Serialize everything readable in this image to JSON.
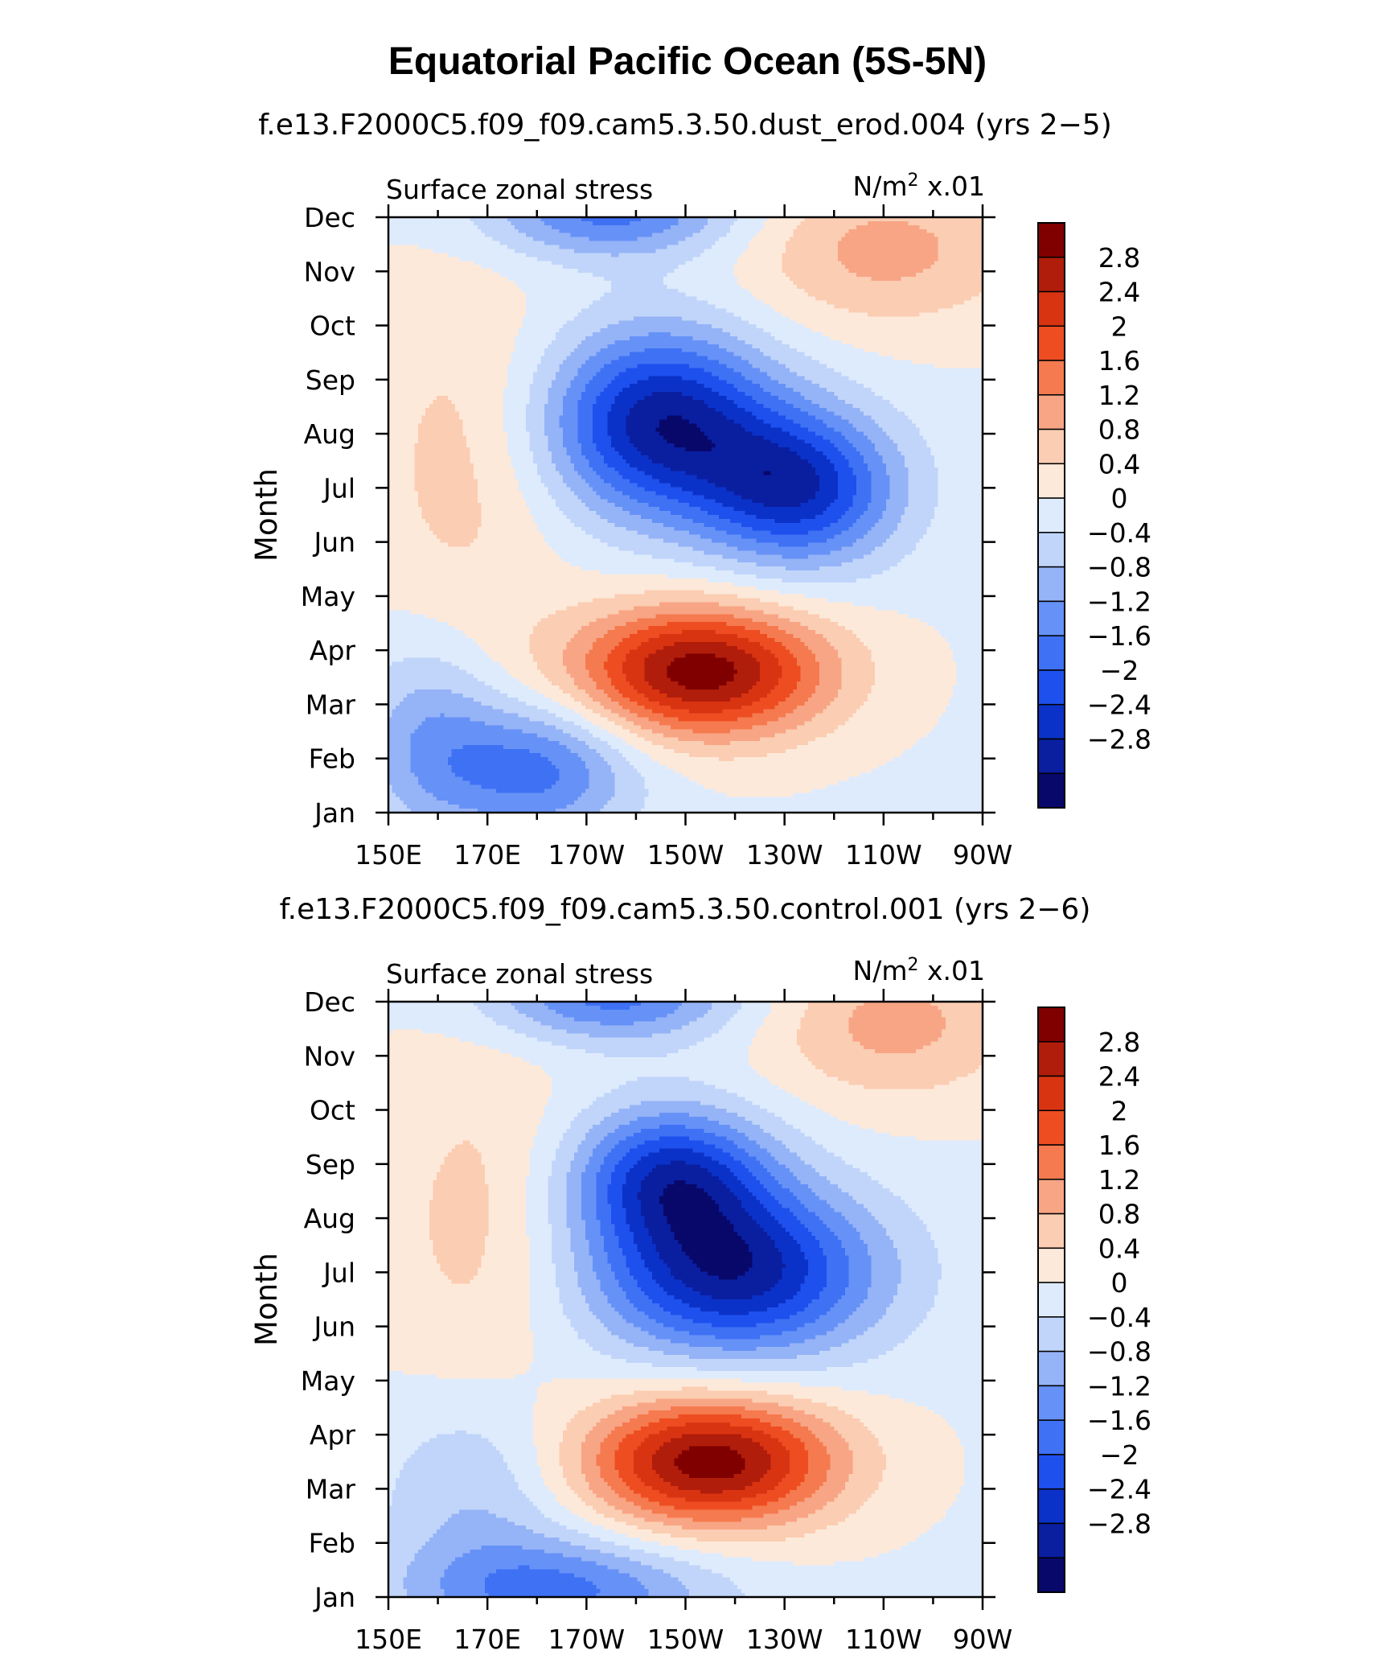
{
  "figure": {
    "title": "Equatorial Pacific Ocean (5S-5N)"
  },
  "chart_data": [
    {
      "type": "heatmap",
      "subtitle": "f.e13.F2000C5.f09_f09.cam5.3.50.dust_erod.004 (yrs 2−5)",
      "left_label": "Surface zonal stress",
      "units_label": "N/m",
      "units_sup": "2",
      "units_scale": " x.01",
      "ylabel": "Month",
      "xlabel": "",
      "x_ticks": [
        "150E",
        "170E",
        "170W",
        "150W",
        "130W",
        "110W",
        "90W"
      ],
      "y_ticks": [
        "Jan",
        "Feb",
        "Mar",
        "Apr",
        "May",
        "Jun",
        "Jul",
        "Aug",
        "Sep",
        "Oct",
        "Nov",
        "Dec"
      ],
      "xlim_deg_east": [
        150,
        270
      ],
      "ylim_month": [
        1,
        12
      ],
      "colorbar_labels": [
        "2.8",
        "2.4",
        "2",
        "1.6",
        "1.2",
        "0.8",
        "0.4",
        "0",
        "−0.4",
        "−0.8",
        "−1.2",
        "−1.6",
        "−2",
        "−2.4",
        "−2.8"
      ],
      "features": [
        {
          "kind": "min",
          "lon": 205,
          "month": 8.2,
          "value": -3.0,
          "sx": 16,
          "sy": 1.2
        },
        {
          "kind": "min",
          "lon": 233,
          "month": 7.0,
          "value": -2.6,
          "sx": 14,
          "sy": 1.0
        },
        {
          "kind": "min",
          "lon": 195,
          "month": 12.1,
          "value": -1.7,
          "sx": 18,
          "sy": 0.6
        },
        {
          "kind": "min",
          "lon": 180,
          "month": 1.8,
          "value": -1.7,
          "sx": 14,
          "sy": 0.9
        },
        {
          "kind": "min",
          "lon": 158,
          "month": 2.4,
          "value": -1.0,
          "sx": 10,
          "sy": 1.3
        },
        {
          "kind": "max",
          "lon": 213,
          "month": 3.6,
          "value": 3.1,
          "sx": 18,
          "sy": 0.85
        },
        {
          "kind": "max",
          "lon": 250,
          "month": 11.4,
          "value": 1.0,
          "sx": 20,
          "sy": 1.0
        },
        {
          "kind": "max",
          "lon": 165,
          "month": 7.5,
          "value": 0.6,
          "sx": 14,
          "sy": 2.5
        }
      ]
    },
    {
      "type": "heatmap",
      "subtitle": "f.e13.F2000C5.f09_f09.cam5.3.50.control.001 (yrs 2−6)",
      "left_label": "Surface zonal stress",
      "units_label": "N/m",
      "units_sup": "2",
      "units_scale": " x.01",
      "ylabel": "Month",
      "xlabel": "",
      "x_ticks": [
        "150E",
        "170E",
        "170W",
        "150W",
        "130W",
        "110W",
        "90W"
      ],
      "y_ticks": [
        "Jan",
        "Feb",
        "Mar",
        "Apr",
        "May",
        "Jun",
        "Jul",
        "Aug",
        "Sep",
        "Oct",
        "Nov",
        "Dec"
      ],
      "xlim_deg_east": [
        150,
        270
      ],
      "ylim_month": [
        1,
        12
      ],
      "colorbar_labels": [
        "2.8",
        "2.4",
        "2",
        "1.6",
        "1.2",
        "0.8",
        "0.4",
        "0",
        "−0.4",
        "−0.8",
        "−1.2",
        "−1.6",
        "−2",
        "−2.4",
        "−2.8"
      ],
      "features": [
        {
          "kind": "min",
          "lon": 220,
          "month": 7.0,
          "value": -3.0,
          "sx": 20,
          "sy": 1.1
        },
        {
          "kind": "min",
          "lon": 207,
          "month": 8.8,
          "value": -2.4,
          "sx": 14,
          "sy": 0.9
        },
        {
          "kind": "min",
          "lon": 195,
          "month": 12.1,
          "value": -1.7,
          "sx": 18,
          "sy": 0.6
        },
        {
          "kind": "min",
          "lon": 185,
          "month": 1.1,
          "value": -1.6,
          "sx": 22,
          "sy": 0.7
        },
        {
          "kind": "min",
          "lon": 168,
          "month": 3.0,
          "value": -0.8,
          "sx": 14,
          "sy": 1.4
        },
        {
          "kind": "max",
          "lon": 215,
          "month": 3.5,
          "value": 3.1,
          "sx": 18,
          "sy": 0.85
        },
        {
          "kind": "max",
          "lon": 252,
          "month": 11.6,
          "value": 1.0,
          "sx": 18,
          "sy": 1.0
        },
        {
          "kind": "max",
          "lon": 168,
          "month": 7.8,
          "value": 0.6,
          "sx": 14,
          "sy": 2.5
        }
      ]
    }
  ],
  "colors": {
    "levels": [
      "#08086b",
      "#0a1ea0",
      "#0b32c8",
      "#1e50ee",
      "#3f71f5",
      "#6692f7",
      "#95b3f7",
      "#c1d5fa",
      "#deebfd",
      "#fde9da",
      "#fbcdb2",
      "#f8a585",
      "#f57a4f",
      "#ee4d22",
      "#d93412",
      "#b11d0b",
      "#800000"
    ]
  }
}
